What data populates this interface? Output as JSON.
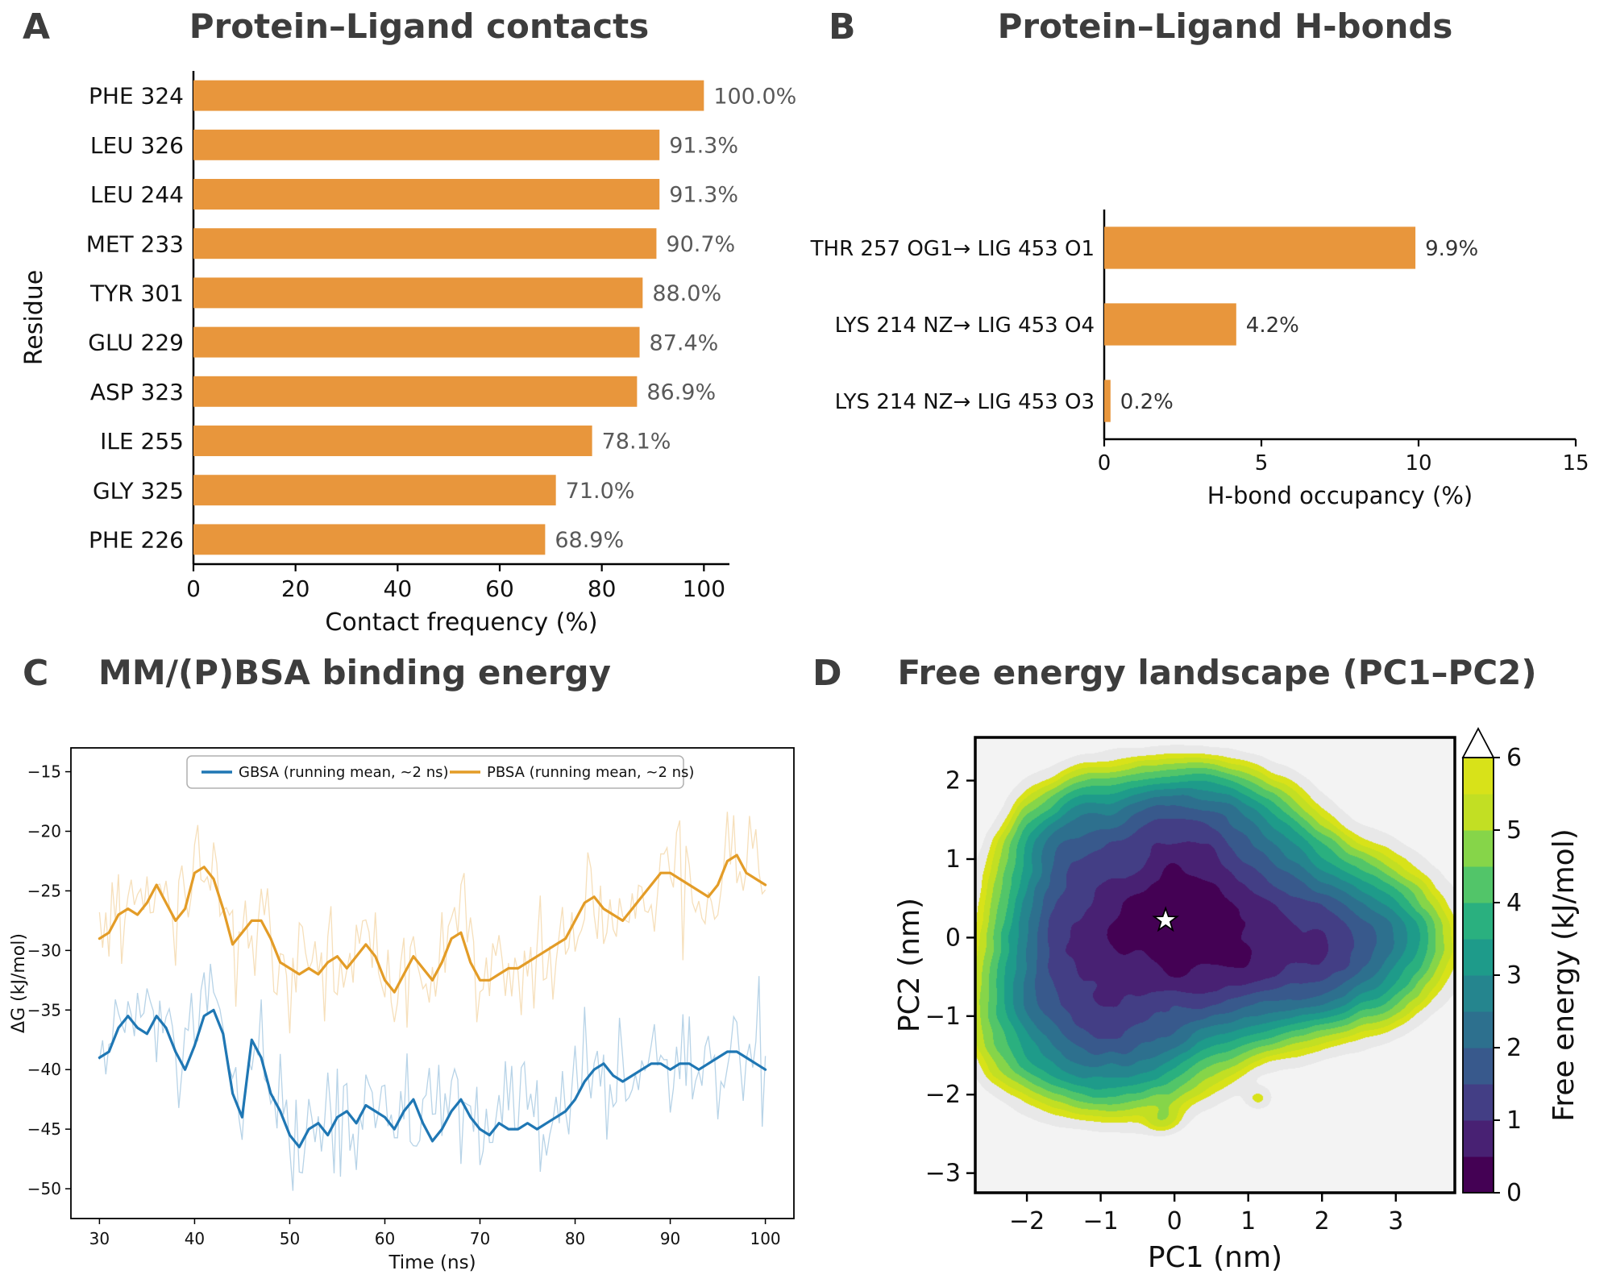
{
  "figure": {
    "panel_letters": [
      "A",
      "B",
      "C",
      "D"
    ],
    "title_color": "#3d3d3d"
  },
  "chart_data": [
    {
      "id": "contacts",
      "type": "bar",
      "orientation": "horizontal",
      "title": "Protein–Ligand contacts",
      "categories": [
        "PHE 324",
        "LEU 326",
        "LEU 244",
        "MET 233",
        "TYR 301",
        "GLU 229",
        "ASP 323",
        "ILE 255",
        "GLY 325",
        "PHE 226"
      ],
      "values": [
        100.0,
        91.3,
        91.3,
        90.7,
        88.0,
        87.4,
        86.9,
        78.1,
        71.0,
        68.9
      ],
      "value_labels": [
        "100.0%",
        "91.3%",
        "91.3%",
        "90.7%",
        "88.0%",
        "87.4%",
        "86.9%",
        "78.1%",
        "71.0%",
        "68.9%"
      ],
      "xlabel": "Contact frequency (%)",
      "ylabel": "Residue",
      "xlim": [
        0,
        105
      ],
      "xticks": [
        0,
        20,
        40,
        60,
        80,
        100
      ],
      "bar_color": "#E8963C",
      "value_label_color": "#595959"
    },
    {
      "id": "hbonds",
      "type": "bar",
      "orientation": "horizontal",
      "title": "Protein–Ligand H-bonds",
      "categories": [
        "THR 257 OG1→ LIG 453 O1",
        "LYS 214 NZ→ LIG 453 O4",
        "LYS 214 NZ→ LIG 453 O3"
      ],
      "values": [
        9.9,
        4.2,
        0.2
      ],
      "value_labels": [
        "9.9%",
        "4.2%",
        "0.2%"
      ],
      "xlabel": "H-bond occupancy (%)",
      "xlim": [
        0,
        15
      ],
      "xticks": [
        0,
        5,
        10,
        15
      ],
      "bar_color": "#E8963C",
      "value_label_color": "#333333"
    },
    {
      "id": "energy",
      "type": "line",
      "title": "MM/(P)BSA binding energy",
      "xlabel": "Time (ns)",
      "ylabel": "ΔG (kJ/mol)",
      "xlim": [
        27,
        103
      ],
      "ylim": [
        -52.5,
        -13
      ],
      "xticks": [
        30,
        40,
        50,
        60,
        70,
        80,
        90,
        100
      ],
      "yticks": [
        -50,
        -45,
        -40,
        -35,
        -30,
        -25,
        -20,
        -15
      ],
      "legend_position": "upper center",
      "series": [
        {
          "name": "GBSA (running mean, ~2 ns)",
          "color": "#1F77B4",
          "x_start": 30,
          "x_step": 1,
          "noise_amplitude": 2.6,
          "values": [
            -39,
            -38.5,
            -36.5,
            -35.5,
            -36.5,
            -37,
            -35.5,
            -36.5,
            -38.5,
            -40,
            -38,
            -35.5,
            -35,
            -37,
            -42,
            -44,
            -37.5,
            -39,
            -42,
            -43.5,
            -45.5,
            -46.5,
            -45,
            -44.5,
            -45.5,
            -44,
            -43.5,
            -44.5,
            -43,
            -43.5,
            -44,
            -45,
            -43.5,
            -42.5,
            -44.5,
            -46,
            -45,
            -43.5,
            -42.5,
            -44,
            -45,
            -45.5,
            -44.5,
            -45,
            -45,
            -44.5,
            -45,
            -44.5,
            -44,
            -43.5,
            -42.5,
            -41,
            -40,
            -39.5,
            -40.5,
            -41,
            -40.5,
            -40,
            -39.5,
            -39.5,
            -40,
            -39.5,
            -39.5,
            -40,
            -39.5,
            -39,
            -38.5,
            -38.5,
            -39,
            -39.5,
            -40
          ]
        },
        {
          "name": "PBSA (running mean, ~2 ns)",
          "color": "#E39C27",
          "x_start": 30,
          "x_step": 1,
          "noise_amplitude": 2.4,
          "values": [
            -29,
            -28.5,
            -27,
            -26.5,
            -27,
            -26,
            -24.5,
            -26,
            -27.5,
            -26.5,
            -23.5,
            -23,
            -24,
            -26.5,
            -29.5,
            -28.5,
            -27.5,
            -27.5,
            -29,
            -31,
            -31.5,
            -32,
            -31.5,
            -32,
            -31,
            -30.5,
            -31.5,
            -30.5,
            -29.5,
            -30.5,
            -32.5,
            -33.5,
            -32,
            -30.5,
            -31.5,
            -32.5,
            -31,
            -29,
            -28.5,
            -31,
            -32.5,
            -32.5,
            -32,
            -31.5,
            -31.5,
            -31,
            -30.5,
            -30,
            -29.5,
            -29,
            -27.5,
            -26,
            -25.5,
            -26.5,
            -27,
            -27.5,
            -26.5,
            -25.5,
            -24.5,
            -23.5,
            -23.5,
            -24,
            -24.5,
            -25,
            -25.5,
            -24.5,
            -22.5,
            -22,
            -23.5,
            -24,
            -24.5
          ]
        }
      ]
    },
    {
      "id": "fes",
      "type": "heatmap",
      "title": "Free energy landscape (PC1–PC2)",
      "xlabel": "PC1 (nm)",
      "ylabel": "PC2 (nm)",
      "xlim": [
        -2.7,
        3.8
      ],
      "ylim": [
        -3.25,
        2.55
      ],
      "xticks": [
        -2,
        -1,
        0,
        1,
        2,
        3
      ],
      "yticks": [
        -3,
        -2,
        -1,
        0,
        1,
        2
      ],
      "colorbar": {
        "label": "Free energy (kJ/mol)",
        "ticks": [
          0,
          1,
          2,
          3,
          4,
          5,
          6
        ],
        "range": [
          0,
          6
        ],
        "extend_max": true
      },
      "level_step": 0.5,
      "band_colors": [
        "#440154",
        "#482173",
        "#433e85",
        "#38598c",
        "#2d708e",
        "#25858e",
        "#1e9b8a",
        "#2ab07f",
        "#52c569",
        "#86d549",
        "#c2df23",
        "#d8e219"
      ],
      "outside_ring_color": "#e8e8e8",
      "background_color": "#f3f3f3",
      "star": {
        "x": -0.12,
        "y": 0.22
      },
      "free_energy_scale": 1.35,
      "basins": [
        {
          "x": -0.15,
          "y": 0.15,
          "a": 1.0,
          "sx": 0.85,
          "sy": 0.6
        },
        {
          "x": 0.9,
          "y": 0.0,
          "a": 0.8,
          "sx": 1.05,
          "sy": 0.55
        },
        {
          "x": 2.1,
          "y": -0.15,
          "a": 0.3,
          "sx": 0.55,
          "sy": 0.42
        },
        {
          "x": 0.1,
          "y": 1.2,
          "a": 0.5,
          "sx": 0.75,
          "sy": 0.45
        },
        {
          "x": -0.9,
          "y": -1.1,
          "a": 0.45,
          "sx": 0.75,
          "sy": 0.5
        },
        {
          "x": -1.3,
          "y": 0.9,
          "a": 0.3,
          "sx": 0.45,
          "sy": 0.5
        },
        {
          "x": -1.5,
          "y": -0.3,
          "a": 0.25,
          "sx": 0.42,
          "sy": 0.55
        },
        {
          "x": 2.9,
          "y": 0.1,
          "a": 0.06,
          "sx": 0.35,
          "sy": 0.3
        },
        {
          "x": -0.15,
          "y": -2.3,
          "a": 0.022,
          "sx": 0.16,
          "sy": 0.12
        },
        {
          "x": 1.15,
          "y": -2.05,
          "a": 0.02,
          "sx": 0.12,
          "sy": 0.1
        }
      ],
      "noise": {
        "amp1": 0.22,
        "scale1": 2.4,
        "amp2": 0.1,
        "scale2": 5.0
      }
    }
  ]
}
